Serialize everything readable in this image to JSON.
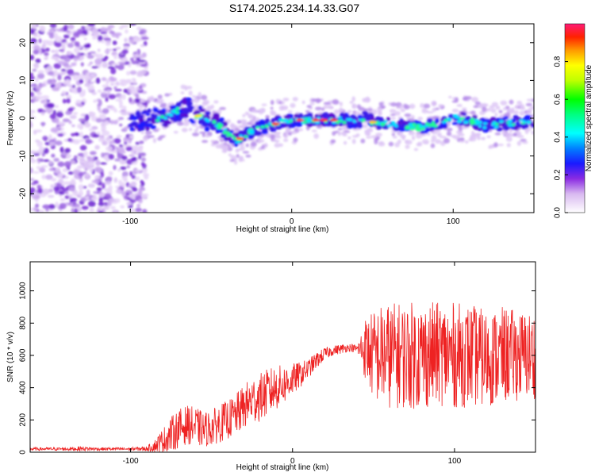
{
  "title": "S174.2025.234.14.33.G07",
  "colors": {
    "snr_line": "#ee2222",
    "frame": "#000000",
    "background": "#ffffff"
  },
  "chart_data": [
    {
      "type": "heatmap",
      "name": "spectrogram",
      "xlabel": "Height of straight line (km)",
      "ylabel": "Frequency (Hz)",
      "xlim": [
        -162,
        150
      ],
      "ylim": [
        -25,
        25
      ],
      "xticks": [
        -100,
        0,
        100
      ],
      "xtick_labels": [
        "-100",
        "0",
        "100"
      ],
      "yticks": [
        -20,
        -10,
        0,
        10,
        20
      ],
      "ytick_labels": [
        "-20",
        "-10",
        "0",
        "10",
        "20"
      ],
      "colorbar": {
        "label": "Normalized spectral amplitude",
        "range": [
          0,
          1
        ],
        "ticks": [
          0.0,
          0.2,
          0.4,
          0.6,
          0.8
        ],
        "tick_labels": [
          "0.0",
          "0.2",
          "0.4",
          "0.6",
          "0.8"
        ],
        "colormap": "rainbow"
      },
      "ridge": {
        "x": [
          -100,
          -90,
          -80,
          -70,
          -65,
          -60,
          -55,
          -50,
          -45,
          -40,
          -35,
          -30,
          -25,
          -20,
          -15,
          -10,
          -5,
          0,
          5,
          10,
          20,
          30,
          40,
          45,
          50,
          60,
          70,
          80,
          90,
          100,
          110,
          120,
          130,
          140,
          150
        ],
        "y": [
          -1,
          -0.5,
          0,
          2,
          3,
          1,
          0,
          -1,
          -2,
          -4,
          -6,
          -5,
          -3.5,
          -2.5,
          -2,
          -1.5,
          -1,
          -0.5,
          -0.5,
          -0.5,
          -0.5,
          -0.5,
          -1,
          0,
          -1,
          -1.5,
          -2,
          -2.5,
          -1.5,
          0,
          -0.5,
          -2,
          -1.5,
          -1,
          -1
        ]
      },
      "noise_region_x": [
        -162,
        -90
      ]
    },
    {
      "type": "line",
      "name": "snr",
      "xlabel": "Height of straight line (km)",
      "ylabel": "SNR (10 * v/v)",
      "xlim": [
        -162,
        150
      ],
      "ylim": [
        0,
        1180
      ],
      "xticks": [
        -100,
        0,
        100
      ],
      "xtick_labels": [
        "-100",
        "0",
        "100"
      ],
      "yticks": [
        0,
        200,
        400,
        600,
        800,
        1000
      ],
      "ytick_labels": [
        "0",
        "200",
        "400",
        "600",
        "800",
        "1000"
      ],
      "series": [
        {
          "name": "SNR",
          "x": [
            -162,
            -150,
            -140,
            -130,
            -120,
            -110,
            -100,
            -90,
            -85,
            -80,
            -75,
            -70,
            -65,
            -60,
            -55,
            -50,
            -45,
            -40,
            -35,
            -30,
            -25,
            -20,
            -15,
            -10,
            -5,
            0,
            5,
            10,
            15,
            20,
            25,
            30,
            35,
            40,
            45,
            50,
            55,
            60,
            70,
            80,
            90,
            100,
            110,
            120,
            130,
            140,
            150
          ],
          "mean": [
            20,
            20,
            20,
            22,
            20,
            20,
            20,
            22,
            40,
            70,
            110,
            150,
            170,
            160,
            140,
            150,
            180,
            200,
            230,
            280,
            320,
            340,
            370,
            400,
            420,
            450,
            480,
            520,
            570,
            610,
            630,
            640,
            650,
            640,
            640,
            600,
            600,
            600,
            600,
            600,
            610,
            600,
            600,
            580,
            600,
            600,
            600
          ],
          "amplitude": [
            10,
            10,
            10,
            15,
            10,
            10,
            10,
            15,
            40,
            80,
            110,
            120,
            120,
            120,
            110,
            110,
            120,
            120,
            130,
            140,
            150,
            150,
            150,
            140,
            120,
            100,
            80,
            60,
            50,
            40,
            30,
            30,
            25,
            25,
            200,
            280,
            320,
            330,
            330,
            340,
            320,
            330,
            320,
            300,
            300,
            280,
            270
          ]
        }
      ]
    }
  ]
}
